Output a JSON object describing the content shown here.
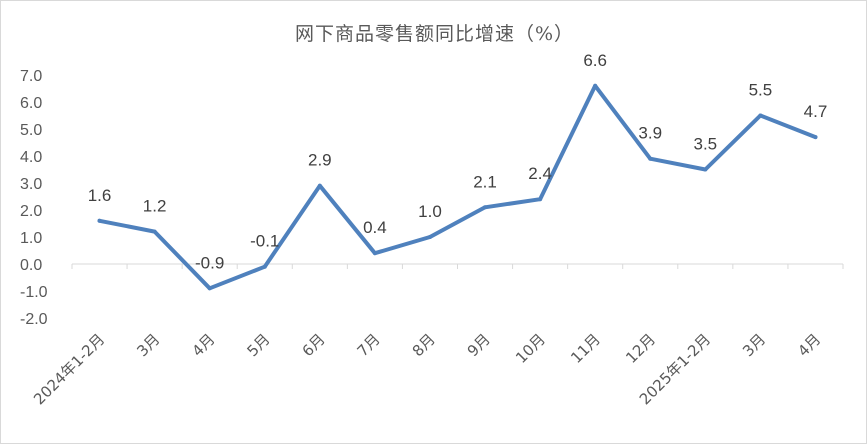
{
  "chart_data": {
    "type": "line",
    "title": "网下商品零售额同比增速（%）",
    "xlabel": "",
    "ylabel": "",
    "categories": [
      "2024年1-2月",
      "3月",
      "4月",
      "5月",
      "6月",
      "7月",
      "8月",
      "9月",
      "10月",
      "11月",
      "12月",
      "2025年1-2月",
      "3月",
      "4月"
    ],
    "series": [
      {
        "values": [
          1.6,
          1.2,
          -0.9,
          -0.1,
          2.9,
          0.4,
          1.0,
          2.1,
          2.4,
          6.6,
          3.9,
          3.5,
          5.5,
          4.7
        ],
        "labels": [
          "1.6",
          "1.2",
          "-0.9",
          "-0.1",
          "2.9",
          "0.4",
          "1.0",
          "2.1",
          "2.4",
          "6.6",
          "3.9",
          "3.5",
          "5.5",
          "4.7"
        ]
      }
    ],
    "ylim": [
      -2.0,
      7.0
    ],
    "yticks": [
      "7.0",
      "6.0",
      "5.0",
      "4.0",
      "3.0",
      "2.0",
      "1.0",
      "0.0",
      "-1.0",
      "-2.0"
    ],
    "ytick_values": [
      7,
      6,
      5,
      4,
      3,
      2,
      1,
      0,
      -1,
      -2
    ],
    "grid": false,
    "legend": "none",
    "line_color": "#4F81BD",
    "axis_color": "#d9d9d9",
    "text_color": "#595959"
  }
}
